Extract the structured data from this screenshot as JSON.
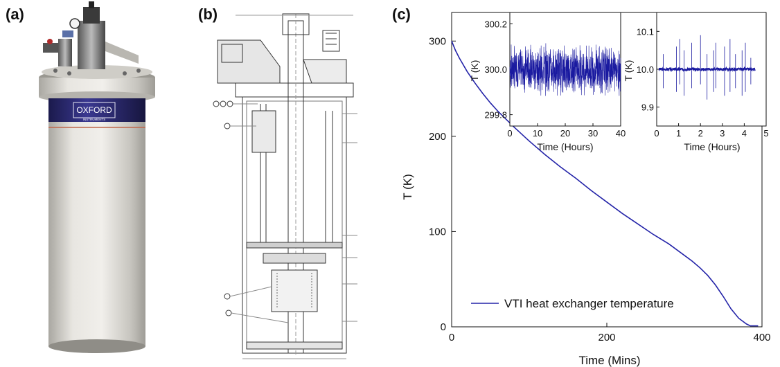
{
  "panels": {
    "a": {
      "label": "(a)"
    },
    "b": {
      "label": "(b)"
    },
    "c": {
      "label": "(c)"
    }
  },
  "cryostat": {
    "logo_line1": "OXFORD",
    "logo_line2": "INSTRUMENTS",
    "band_color": "#2b2a6e",
    "body_color": "#d8d6d0"
  },
  "chart_data": [
    {
      "type": "line",
      "xlabel": "Time (Mins)",
      "ylabel": "T (K)",
      "xlim": [
        0,
        400
      ],
      "ylim": [
        0,
        330
      ],
      "xticks": [
        0,
        200,
        400
      ],
      "yticks": [
        0,
        100,
        200,
        300
      ],
      "series": [
        {
          "name": "VTI heat exchanger temperature",
          "color": "#2323a8",
          "x": [
            0,
            5,
            10,
            20,
            30,
            40,
            50,
            60,
            80,
            100,
            120,
            140,
            160,
            180,
            200,
            220,
            240,
            260,
            280,
            300,
            310,
            320,
            330,
            340,
            350,
            360,
            370,
            380,
            385,
            390,
            395
          ],
          "y": [
            300,
            290,
            282,
            268,
            256,
            245,
            235,
            226,
            210,
            195,
            181,
            168,
            156,
            143,
            131,
            119,
            108,
            97,
            87,
            75,
            69,
            62,
            54,
            44,
            32,
            19,
            9,
            3,
            1,
            1,
            1
          ]
        }
      ],
      "legend": {
        "placement": "bottom-left"
      }
    },
    {
      "type": "line",
      "inset": "left",
      "xlabel": "Time (Hours)",
      "ylabel": "T (K)",
      "xlim": [
        0,
        40
      ],
      "ylim": [
        299.75,
        300.25
      ],
      "xticks": [
        0,
        10,
        20,
        30,
        40
      ],
      "yticks": [
        299.8,
        300.0,
        300.2
      ],
      "ytick_labels": [
        "299.8",
        "300.0",
        "300.2"
      ],
      "series": [
        {
          "color": "#1a1aa0",
          "mean": 300.0,
          "noise_amplitude": 0.12,
          "note": "dense fluctuating signal"
        }
      ]
    },
    {
      "type": "line",
      "inset": "right",
      "xlabel": "Time (Hours)",
      "ylabel": "T (K)",
      "xlim": [
        0,
        5
      ],
      "ylim": [
        9.85,
        10.15
      ],
      "xticks": [
        0,
        1,
        2,
        3,
        4,
        5
      ],
      "yticks": [
        9.9,
        10.0,
        10.1
      ],
      "ytick_labels": [
        "9.9",
        "10.0",
        "10.1"
      ],
      "series": [
        {
          "color": "#1a1aa0",
          "mean": 10.0,
          "spikes_x": [
            0.3,
            0.9,
            1.05,
            1.25,
            1.6,
            2.0,
            2.3,
            2.6,
            2.7,
            3.1,
            3.35,
            3.6,
            3.9,
            4.05,
            4.3
          ],
          "spikes_up": [
            0.04,
            0.06,
            0.08,
            0.05,
            0.07,
            0.09,
            0.04,
            0.05,
            0.07,
            0.06,
            0.08,
            0.04,
            0.05,
            0.07,
            0.03
          ],
          "spikes_down": [
            -0.05,
            -0.06,
            -0.04,
            -0.07,
            -0.05,
            -0.04,
            -0.08,
            -0.06,
            -0.05,
            -0.07,
            -0.06,
            -0.05,
            -0.07,
            -0.06,
            -0.04
          ]
        }
      ]
    }
  ]
}
